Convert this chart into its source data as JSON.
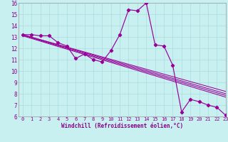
{
  "title": "",
  "xlabel": "Windchill (Refroidissement éolien,°C)",
  "ylabel": "",
  "bg_color": "#c8f0f0",
  "line_color": "#990099",
  "grid_color": "#aadddd",
  "xlim": [
    -0.5,
    23
  ],
  "ylim": [
    6,
    16
  ],
  "xticks": [
    0,
    1,
    2,
    3,
    4,
    5,
    6,
    7,
    8,
    9,
    10,
    11,
    12,
    13,
    14,
    15,
    16,
    17,
    18,
    19,
    20,
    21,
    22,
    23
  ],
  "yticks": [
    6,
    7,
    8,
    9,
    10,
    11,
    12,
    13,
    14,
    15,
    16
  ],
  "main_x": [
    0,
    1,
    2,
    3,
    4,
    5,
    6,
    7,
    8,
    9,
    10,
    11,
    12,
    13,
    14,
    15,
    16,
    17,
    18,
    19,
    20,
    21,
    22,
    23
  ],
  "main_y": [
    13.2,
    13.2,
    13.1,
    13.1,
    12.5,
    12.2,
    11.1,
    11.5,
    11.0,
    10.8,
    11.8,
    13.2,
    15.4,
    15.3,
    16.0,
    12.3,
    12.2,
    10.5,
    6.4,
    7.5,
    7.3,
    7.0,
    6.8,
    6.1
  ],
  "trend_lines": [
    {
      "x0": 0.0,
      "y0": 13.2,
      "x1": 23,
      "y1": 8.2
    },
    {
      "x0": 0.0,
      "y0": 13.2,
      "x1": 23,
      "y1": 8.0
    },
    {
      "x0": 0.0,
      "y0": 13.15,
      "x1": 23,
      "y1": 7.85
    },
    {
      "x0": 0.0,
      "y0": 13.1,
      "x1": 23,
      "y1": 7.7
    }
  ]
}
